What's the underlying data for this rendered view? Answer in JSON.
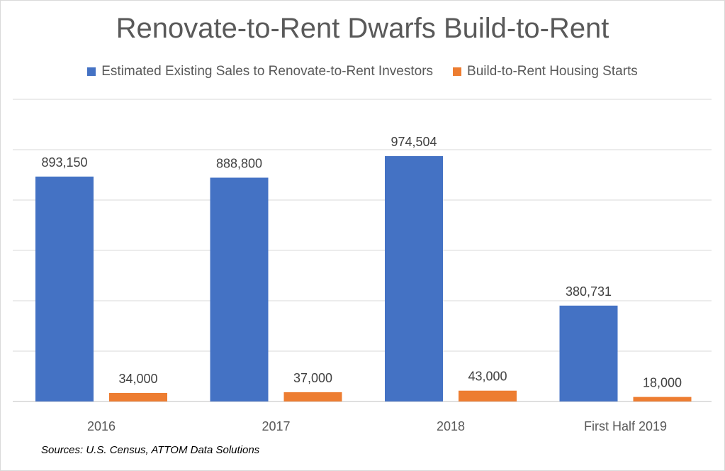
{
  "chart_data": {
    "type": "bar",
    "title": "Renovate-to-Rent Dwarfs Build-to-Rent",
    "categories": [
      "2016",
      "2017",
      "2018",
      "First Half 2019"
    ],
    "series": [
      {
        "name": "Estimated Existing Sales to Renovate-to-Rent Investors",
        "color": "#4472c4",
        "values": [
          893150,
          888800,
          974504,
          380731
        ],
        "labels": [
          "893,150",
          "888,800",
          "974,504",
          "380,731"
        ]
      },
      {
        "name": "Build-to-Rent Housing Starts",
        "color": "#ed7d31",
        "values": [
          34000,
          37000,
          43000,
          18000
        ],
        "labels": [
          "34,000",
          "37,000",
          "43,000",
          "18,000"
        ]
      }
    ],
    "ylim": [
      0,
      1200000
    ],
    "y_grid_step": 200000,
    "grid": true,
    "legend_position": "top"
  },
  "source_note": "Sources: U.S. Census, ATTOM Data Solutions"
}
